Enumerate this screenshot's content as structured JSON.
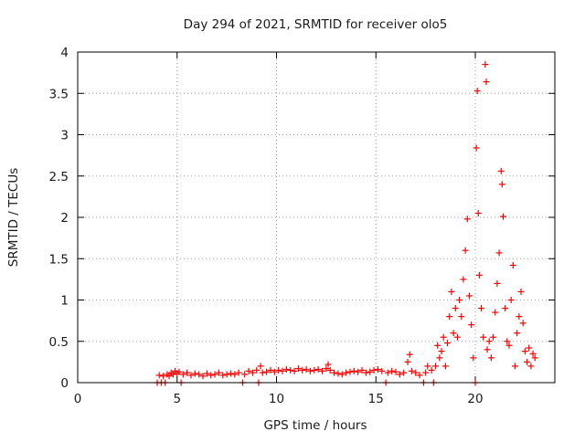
{
  "chart_data": {
    "type": "scatter",
    "title": "Day 294 of 2021, SRMTID for receiver olo5",
    "xlabel": "GPS time / hours",
    "ylabel": "SRMTID / TECUs",
    "xlim": [
      0,
      24
    ],
    "ylim": [
      0,
      4
    ],
    "xticks": [
      0,
      5,
      10,
      15,
      20
    ],
    "xtick_labels": [
      "0",
      "5",
      "10",
      "15",
      "20"
    ],
    "yticks": [
      0,
      0.5,
      1,
      1.5,
      2,
      2.5,
      3,
      3.5,
      4
    ],
    "ytick_labels": [
      "0",
      "0.5",
      "1",
      "1.5",
      "2",
      "2.5",
      "3",
      "3.5",
      "4"
    ],
    "grid": true,
    "marker": "+",
    "color": "#ff0000",
    "series": [
      {
        "name": "SRMTID",
        "points": [
          [
            4.0,
            0.0
          ],
          [
            4.1,
            0.09
          ],
          [
            4.2,
            0.0
          ],
          [
            4.3,
            0.08
          ],
          [
            4.4,
            0.0
          ],
          [
            4.5,
            0.1
          ],
          [
            4.6,
            0.08
          ],
          [
            4.7,
            0.12
          ],
          [
            4.8,
            0.1
          ],
          [
            4.9,
            0.14
          ],
          [
            5.0,
            0.11
          ],
          [
            5.1,
            0.13
          ],
          [
            5.2,
            0.0
          ],
          [
            5.3,
            0.1
          ],
          [
            5.5,
            0.12
          ],
          [
            5.7,
            0.09
          ],
          [
            5.9,
            0.11
          ],
          [
            6.1,
            0.1
          ],
          [
            6.3,
            0.08
          ],
          [
            6.5,
            0.11
          ],
          [
            6.7,
            0.09
          ],
          [
            6.9,
            0.1
          ],
          [
            7.1,
            0.12
          ],
          [
            7.3,
            0.09
          ],
          [
            7.5,
            0.1
          ],
          [
            7.7,
            0.11
          ],
          [
            7.9,
            0.1
          ],
          [
            8.1,
            0.12
          ],
          [
            8.3,
            0.0
          ],
          [
            8.4,
            0.1
          ],
          [
            8.6,
            0.14
          ],
          [
            8.8,
            0.12
          ],
          [
            9.0,
            0.15
          ],
          [
            9.1,
            0.0
          ],
          [
            9.2,
            0.2
          ],
          [
            9.3,
            0.12
          ],
          [
            9.5,
            0.13
          ],
          [
            9.7,
            0.15
          ],
          [
            9.9,
            0.13
          ],
          [
            10.1,
            0.15
          ],
          [
            10.3,
            0.14
          ],
          [
            10.5,
            0.16
          ],
          [
            10.7,
            0.15
          ],
          [
            10.9,
            0.14
          ],
          [
            11.1,
            0.17
          ],
          [
            11.3,
            0.15
          ],
          [
            11.5,
            0.16
          ],
          [
            11.7,
            0.14
          ],
          [
            11.9,
            0.15
          ],
          [
            12.1,
            0.16
          ],
          [
            12.3,
            0.14
          ],
          [
            12.5,
            0.17
          ],
          [
            12.6,
            0.22
          ],
          [
            12.7,
            0.15
          ],
          [
            12.9,
            0.12
          ],
          [
            13.1,
            0.11
          ],
          [
            13.3,
            0.1
          ],
          [
            13.5,
            0.12
          ],
          [
            13.7,
            0.13
          ],
          [
            13.9,
            0.14
          ],
          [
            14.1,
            0.13
          ],
          [
            14.3,
            0.15
          ],
          [
            14.5,
            0.12
          ],
          [
            14.7,
            0.13
          ],
          [
            14.9,
            0.15
          ],
          [
            15.1,
            0.16
          ],
          [
            15.3,
            0.14
          ],
          [
            15.5,
            0.0
          ],
          [
            15.6,
            0.12
          ],
          [
            15.8,
            0.14
          ],
          [
            16.0,
            0.13
          ],
          [
            16.2,
            0.1
          ],
          [
            16.4,
            0.12
          ],
          [
            16.6,
            0.25
          ],
          [
            16.7,
            0.34
          ],
          [
            16.8,
            0.14
          ],
          [
            17.0,
            0.12
          ],
          [
            17.2,
            0.09
          ],
          [
            17.4,
            0.0
          ],
          [
            17.5,
            0.12
          ],
          [
            17.6,
            0.2
          ],
          [
            17.8,
            0.15
          ],
          [
            17.9,
            0.0
          ],
          [
            18.0,
            0.2
          ],
          [
            18.1,
            0.45
          ],
          [
            18.2,
            0.3
          ],
          [
            18.3,
            0.38
          ],
          [
            18.4,
            0.55
          ],
          [
            18.5,
            0.2
          ],
          [
            18.6,
            0.48
          ],
          [
            18.7,
            0.8
          ],
          [
            18.8,
            1.1
          ],
          [
            18.9,
            0.6
          ],
          [
            19.0,
            0.9
          ],
          [
            19.1,
            0.55
          ],
          [
            19.2,
            1.0
          ],
          [
            19.3,
            0.8
          ],
          [
            19.4,
            1.25
          ],
          [
            19.5,
            1.6
          ],
          [
            19.6,
            1.98
          ],
          [
            19.7,
            1.05
          ],
          [
            19.8,
            0.7
          ],
          [
            19.9,
            0.3
          ],
          [
            20.0,
            0.0
          ],
          [
            20.05,
            2.84
          ],
          [
            20.1,
            3.53
          ],
          [
            20.15,
            2.05
          ],
          [
            20.2,
            1.3
          ],
          [
            20.3,
            0.9
          ],
          [
            20.4,
            0.55
          ],
          [
            20.5,
            3.85
          ],
          [
            20.55,
            3.64
          ],
          [
            20.6,
            0.4
          ],
          [
            20.7,
            0.5
          ],
          [
            20.8,
            0.3
          ],
          [
            20.9,
            0.55
          ],
          [
            21.0,
            0.85
          ],
          [
            21.1,
            1.2
          ],
          [
            21.2,
            1.57
          ],
          [
            21.3,
            2.56
          ],
          [
            21.35,
            2.4
          ],
          [
            21.4,
            2.01
          ],
          [
            21.5,
            0.9
          ],
          [
            21.6,
            0.5
          ],
          [
            21.7,
            0.45
          ],
          [
            21.8,
            1.0
          ],
          [
            21.9,
            1.42
          ],
          [
            22.0,
            0.2
          ],
          [
            22.1,
            0.6
          ],
          [
            22.2,
            0.8
          ],
          [
            22.3,
            1.1
          ],
          [
            22.4,
            0.72
          ],
          [
            22.5,
            0.38
          ],
          [
            22.6,
            0.25
          ],
          [
            22.7,
            0.42
          ],
          [
            22.8,
            0.2
          ],
          [
            22.9,
            0.35
          ],
          [
            23.0,
            0.3
          ]
        ]
      }
    ]
  }
}
